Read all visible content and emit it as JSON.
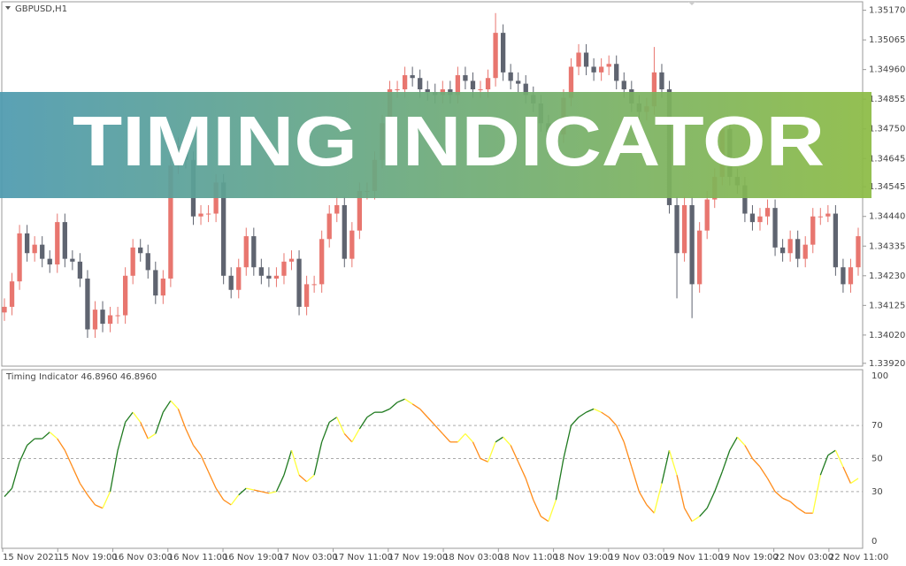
{
  "banner": "TIMING INDICATOR",
  "chart_data": [
    {
      "type": "candlestick",
      "title": "GBPUSD,H1",
      "up_color": "#e8766f",
      "down_color": "#5f6470",
      "ylim": [
        1.3391,
        1.352
      ],
      "yticks": [
        {
          "value": 1.3517,
          "label": "1.35170"
        },
        {
          "value": 1.35065,
          "label": "1.35065"
        },
        {
          "value": 1.3496,
          "label": "1.34960"
        },
        {
          "value": 1.34855,
          "label": "1.34855"
        },
        {
          "value": 1.3475,
          "label": "1.34750"
        },
        {
          "value": 1.34645,
          "label": "1.34645"
        },
        {
          "value": 1.34545,
          "label": "1.34545"
        },
        {
          "value": 1.3444,
          "label": "1.34440"
        },
        {
          "value": 1.34335,
          "label": "1.34335"
        },
        {
          "value": 1.3423,
          "label": "1.34230"
        },
        {
          "value": 1.34125,
          "label": "1.34125"
        },
        {
          "value": 1.3402,
          "label": "1.34020"
        },
        {
          "value": 1.3392,
          "label": "1.33920"
        }
      ],
      "x_labels": [
        "15 Nov 2021",
        "15 Nov 19:00",
        "16 Nov 03:00",
        "16 Nov 11:00",
        "16 Nov 19:00",
        "17 Nov 03:00",
        "17 Nov 11:00",
        "17 Nov 19:00",
        "18 Nov 03:00",
        "18 Nov 11:00",
        "18 Nov 19:00",
        "19 Nov 03:00",
        "19 Nov 11:00",
        "19 Nov 19:00",
        "22 Nov 03:00",
        "22 Nov 11:00"
      ],
      "open": [
        1.341,
        1.3412,
        1.3421,
        1.3438,
        1.3431,
        1.3434,
        1.3429,
        1.3427,
        1.3442,
        1.3429,
        1.3428,
        1.3422,
        1.3404,
        1.3411,
        1.3406,
        1.3409,
        1.3409,
        1.3423,
        1.3433,
        1.3431,
        1.3425,
        1.3416,
        1.3422,
        1.3462,
        1.3469,
        1.3464,
        1.3444,
        1.3445,
        1.3445,
        1.3456,
        1.3423,
        1.3418,
        1.3426,
        1.3437,
        1.3426,
        1.3423,
        1.3422,
        1.3423,
        1.3428,
        1.3429,
        1.3412,
        1.342,
        1.342,
        1.3436,
        1.3445,
        1.3448,
        1.3429,
        1.3439,
        1.3453,
        1.3453,
        1.3464,
        1.3477,
        1.3489,
        1.3489,
        1.3494,
        1.3493,
        1.3489,
        1.3488,
        1.3487,
        1.3489,
        1.3487,
        1.3494,
        1.3492,
        1.3489,
        1.3489,
        1.3493,
        1.3509,
        1.3495,
        1.3492,
        1.3491,
        1.3487,
        1.3484,
        1.3477,
        1.3469,
        1.3473,
        1.3486,
        1.3497,
        1.3502,
        1.3497,
        1.3495,
        1.3497,
        1.3498,
        1.3492,
        1.3489,
        1.3484,
        1.3481,
        1.3483,
        1.3495,
        1.3489,
        1.3448,
        1.3431,
        1.3448,
        1.342,
        1.3439,
        1.345,
        1.3458,
        1.3475,
        1.3458,
        1.3455,
        1.3445,
        1.3442,
        1.3444,
        1.3447,
        1.3433,
        1.3431,
        1.3436,
        1.3429,
        1.3434,
        1.3444,
        1.3444,
        1.3445,
        1.3426,
        1.342,
        1.3426
      ],
      "high": [
        1.3415,
        1.3424,
        1.3441,
        1.3441,
        1.3437,
        1.3437,
        1.3432,
        1.3445,
        1.3445,
        1.3432,
        1.3431,
        1.3425,
        1.3414,
        1.3414,
        1.3412,
        1.3412,
        1.3426,
        1.3436,
        1.3436,
        1.3434,
        1.3428,
        1.3425,
        1.3465,
        1.3472,
        1.3472,
        1.3467,
        1.3448,
        1.3448,
        1.3459,
        1.3459,
        1.3426,
        1.3429,
        1.344,
        1.344,
        1.3429,
        1.3426,
        1.3426,
        1.3431,
        1.3432,
        1.3432,
        1.3423,
        1.3423,
        1.3439,
        1.3448,
        1.3451,
        1.3451,
        1.3442,
        1.3456,
        1.3456,
        1.3467,
        1.348,
        1.3492,
        1.3492,
        1.3497,
        1.3497,
        1.3496,
        1.3492,
        1.3491,
        1.3492,
        1.3492,
        1.3497,
        1.3497,
        1.3495,
        1.3492,
        1.3496,
        1.3516,
        1.3512,
        1.3498,
        1.3495,
        1.3494,
        1.349,
        1.3487,
        1.348,
        1.3476,
        1.3489,
        1.35,
        1.3505,
        1.3505,
        1.35,
        1.35,
        1.3501,
        1.3501,
        1.3495,
        1.3492,
        1.3487,
        1.3486,
        1.3504,
        1.3498,
        1.3492,
        1.3451,
        1.3451,
        1.3451,
        1.3442,
        1.3453,
        1.3461,
        1.3478,
        1.3478,
        1.3461,
        1.3458,
        1.3448,
        1.3447,
        1.345,
        1.345,
        1.3436,
        1.3439,
        1.3439,
        1.3437,
        1.3447,
        1.3447,
        1.3448,
        1.3448,
        1.3429,
        1.3429,
        1.344
      ],
      "low": [
        1.3407,
        1.3409,
        1.3418,
        1.3428,
        1.3428,
        1.3426,
        1.3424,
        1.3424,
        1.3426,
        1.3425,
        1.3419,
        1.3401,
        1.3401,
        1.3403,
        1.3403,
        1.3406,
        1.3406,
        1.342,
        1.3428,
        1.3422,
        1.3413,
        1.3413,
        1.3419,
        1.3459,
        1.3461,
        1.3441,
        1.3441,
        1.3442,
        1.3442,
        1.342,
        1.3415,
        1.3415,
        1.3423,
        1.3423,
        1.342,
        1.3419,
        1.3419,
        1.342,
        1.3425,
        1.3409,
        1.3409,
        1.3417,
        1.3417,
        1.3433,
        1.3442,
        1.3426,
        1.3426,
        1.3436,
        1.345,
        1.345,
        1.3461,
        1.3474,
        1.3486,
        1.3486,
        1.349,
        1.3486,
        1.3485,
        1.3484,
        1.3484,
        1.3484,
        1.3484,
        1.3489,
        1.3486,
        1.3486,
        1.3486,
        1.349,
        1.3492,
        1.3489,
        1.3488,
        1.3484,
        1.3481,
        1.3474,
        1.3466,
        1.3466,
        1.347,
        1.3483,
        1.3494,
        1.3494,
        1.3492,
        1.3492,
        1.3494,
        1.3489,
        1.3486,
        1.3481,
        1.3478,
        1.3478,
        1.348,
        1.3486,
        1.3445,
        1.3415,
        1.3428,
        1.3408,
        1.3417,
        1.3436,
        1.3447,
        1.3455,
        1.3455,
        1.3452,
        1.3442,
        1.3439,
        1.3439,
        1.3441,
        1.343,
        1.3428,
        1.3428,
        1.3426,
        1.3426,
        1.3431,
        1.3441,
        1.3442,
        1.3423,
        1.3417,
        1.3417,
        1.3423
      ],
      "close": [
        1.3412,
        1.3421,
        1.3438,
        1.3431,
        1.3434,
        1.3429,
        1.3427,
        1.3442,
        1.3429,
        1.3428,
        1.3422,
        1.3404,
        1.3411,
        1.3406,
        1.3409,
        1.3409,
        1.3423,
        1.3433,
        1.3431,
        1.3425,
        1.3416,
        1.3422,
        1.3462,
        1.3469,
        1.3464,
        1.3444,
        1.3445,
        1.3445,
        1.3456,
        1.3423,
        1.3418,
        1.3426,
        1.3437,
        1.3426,
        1.3423,
        1.3422,
        1.3423,
        1.3428,
        1.3429,
        1.3412,
        1.342,
        1.342,
        1.3436,
        1.3445,
        1.3448,
        1.3429,
        1.3439,
        1.3453,
        1.3453,
        1.3464,
        1.3477,
        1.3489,
        1.3489,
        1.3494,
        1.3493,
        1.3489,
        1.3488,
        1.3487,
        1.3489,
        1.3487,
        1.3494,
        1.3492,
        1.3489,
        1.3489,
        1.3493,
        1.3509,
        1.3495,
        1.3492,
        1.3491,
        1.3487,
        1.3484,
        1.3477,
        1.3469,
        1.3473,
        1.3486,
        1.3497,
        1.3502,
        1.3497,
        1.3495,
        1.3497,
        1.3498,
        1.3492,
        1.3489,
        1.3484,
        1.3481,
        1.3483,
        1.3495,
        1.3489,
        1.3448,
        1.3431,
        1.3448,
        1.342,
        1.3439,
        1.345,
        1.3458,
        1.3475,
        1.3458,
        1.3455,
        1.3445,
        1.3442,
        1.3444,
        1.3447,
        1.3433,
        1.3431,
        1.3436,
        1.3429,
        1.3434,
        1.3444,
        1.3444,
        1.3445,
        1.3426,
        1.342,
        1.3426,
        1.3437
      ]
    },
    {
      "type": "line",
      "title": "Timing Indicator 46.8960 46.8960",
      "up_color": "#1f7a1f",
      "down_color": "#ff8c1a",
      "turn_color": "#ffff3c",
      "ylim": [
        0,
        100
      ],
      "yticks": [
        0,
        30,
        50,
        70,
        100
      ],
      "values": [
        27,
        32,
        48,
        58,
        62,
        62,
        66,
        62,
        55,
        45,
        35,
        28,
        22,
        20,
        30,
        55,
        72,
        78,
        72,
        62,
        65,
        78,
        85,
        80,
        68,
        58,
        52,
        42,
        32,
        25,
        22,
        28,
        32,
        31,
        30,
        29,
        30,
        40,
        55,
        40,
        36,
        40,
        60,
        72,
        75,
        65,
        60,
        68,
        75,
        78,
        78,
        80,
        84,
        86,
        83,
        80,
        75,
        70,
        65,
        60,
        60,
        65,
        60,
        50,
        48,
        60,
        63,
        58,
        48,
        38,
        25,
        15,
        12,
        25,
        50,
        70,
        75,
        78,
        80,
        78,
        75,
        70,
        60,
        45,
        30,
        22,
        17,
        35,
        55,
        40,
        20,
        12,
        15,
        20,
        30,
        42,
        55,
        63,
        58,
        50,
        45,
        38,
        30,
        26,
        24,
        20,
        17,
        17,
        40,
        52,
        55,
        45,
        35,
        38
      ]
    }
  ]
}
